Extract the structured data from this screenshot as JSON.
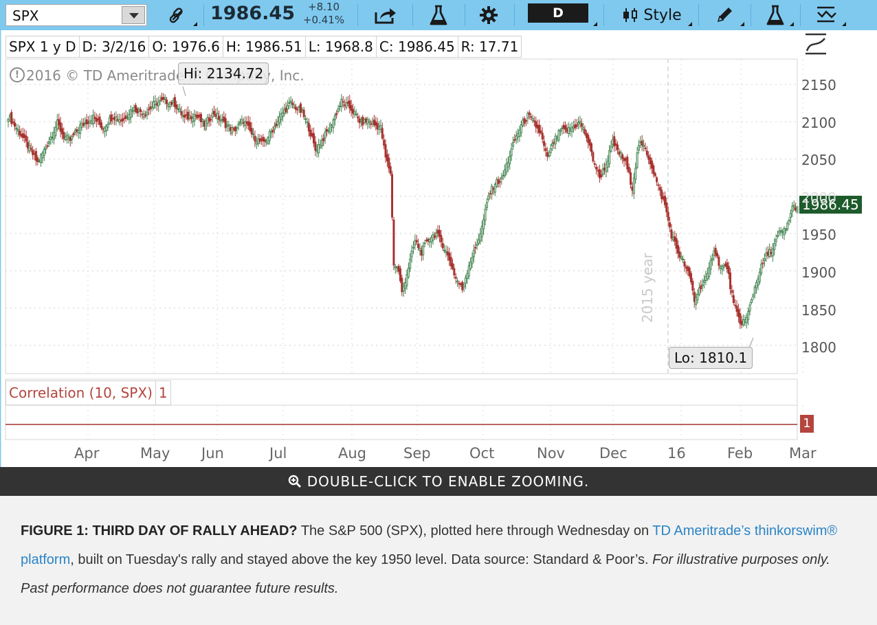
{
  "toolbar": {
    "symbol": "SPX",
    "last_price": "1986.45",
    "change_abs": "+8.10",
    "change_pct": "+0.41%",
    "aggregation": "D",
    "style_label": "Style",
    "icons": [
      "link-icon",
      "share-icon",
      "flask-icon",
      "gear-icon",
      "candlestick-icon",
      "pencil-icon",
      "flask-icon",
      "studies-icon"
    ]
  },
  "legend": {
    "symbol_period": "SPX 1 y D",
    "date": "D: 3/2/16",
    "open": "O: 1976.6",
    "high": "H: 1986.51",
    "low": "L: 1968.8",
    "close": "C: 1986.45",
    "range": "R: 17.71"
  },
  "copyright": "2016 © TD Ameritrade IP Company, Inc.",
  "hi_callout": "Hi: 2134.72",
  "lo_callout": "Lo: 1810.1",
  "year_label": "2015 year",
  "last_price_tag": "1986.45",
  "correlation": {
    "label": "Correlation (10, SPX)",
    "value": "1",
    "tag": "1"
  },
  "y_axis_ticks": [
    "2150",
    "2100",
    "2050",
    "2000",
    "1950",
    "1900",
    "1850",
    "1800"
  ],
  "x_axis_ticks": [
    "Apr",
    "May",
    "Jun",
    "Jul",
    "Aug",
    "Sep",
    "Oct",
    "Nov",
    "Dec",
    "16",
    "Feb",
    "Mar"
  ],
  "zoom_banner": "DOUBLE-CLICK TO ENABLE ZOOMING.",
  "caption": {
    "title": "FIGURE 1: THIRD DAY OF RALLY AHEAD?",
    "text1": " The S&P 500 (SPX), plotted here through Wednesday on ",
    "link": "TD Ameritrade’s thinkorswim® platform",
    "text2": ", built on Tuesday's rally and stayed above the key 1950 level. Data source: Standard & Poor’s. ",
    "disclaimer": "For illustrative purposes only. Past performance does not guarantee future results."
  },
  "chart_data": {
    "type": "candlestick",
    "symbol": "SPX",
    "aggregation": "daily",
    "ylim": [
      1765,
      2175
    ],
    "x_range": [
      "2015-03-03",
      "2016-03-02"
    ],
    "path": [
      [
        0,
        2108
      ],
      [
        8,
        2082
      ],
      [
        14,
        2060
      ],
      [
        18,
        2045
      ],
      [
        24,
        2070
      ],
      [
        30,
        2098
      ],
      [
        34,
        2080
      ],
      [
        38,
        2075
      ],
      [
        44,
        2094
      ],
      [
        52,
        2106
      ],
      [
        58,
        2092
      ],
      [
        64,
        2108
      ],
      [
        70,
        2102
      ],
      [
        76,
        2118
      ],
      [
        84,
        2112
      ],
      [
        90,
        2125
      ],
      [
        96,
        2128
      ],
      [
        102,
        2124
      ],
      [
        108,
        2104
      ],
      [
        114,
        2110
      ],
      [
        120,
        2096
      ],
      [
        126,
        2112
      ],
      [
        132,
        2098
      ],
      [
        138,
        2088
      ],
      [
        144,
        2102
      ],
      [
        150,
        2080
      ],
      [
        156,
        2070
      ],
      [
        162,
        2090
      ],
      [
        168,
        2112
      ],
      [
        173,
        2125
      ],
      [
        180,
        2112
      ],
      [
        184,
        2092
      ],
      [
        188,
        2062
      ],
      [
        193,
        2078
      ],
      [
        198,
        2098
      ],
      [
        204,
        2127
      ],
      [
        210,
        2117
      ],
      [
        216,
        2098
      ],
      [
        220,
        2102
      ],
      [
        224,
        2096
      ],
      [
        228,
        2092
      ],
      [
        231,
        2052
      ],
      [
        234,
        2032
      ],
      [
        236,
        1910
      ],
      [
        239,
        1900
      ],
      [
        241,
        1870
      ],
      [
        245,
        1905
      ],
      [
        249,
        1940
      ],
      [
        253,
        1925
      ],
      [
        258,
        1945
      ],
      [
        262,
        1950
      ],
      [
        266,
        1935
      ],
      [
        270,
        1915
      ],
      [
        274,
        1890
      ],
      [
        278,
        1875
      ],
      [
        282,
        1908
      ],
      [
        286,
        1930
      ],
      [
        290,
        1958
      ],
      [
        294,
        2000
      ],
      [
        298,
        2018
      ],
      [
        302,
        2022
      ],
      [
        306,
        2048
      ],
      [
        310,
        2075
      ],
      [
        314,
        2095
      ],
      [
        318,
        2108
      ],
      [
        322,
        2098
      ],
      [
        326,
        2083
      ],
      [
        330,
        2050
      ],
      [
        334,
        2073
      ],
      [
        338,
        2088
      ],
      [
        342,
        2088
      ],
      [
        346,
        2093
      ],
      [
        350,
        2099
      ],
      [
        354,
        2080
      ],
      [
        358,
        2050
      ],
      [
        362,
        2025
      ],
      [
        366,
        2043
      ],
      [
        370,
        2072
      ],
      [
        374,
        2058
      ],
      [
        378,
        2045
      ],
      [
        382,
        2012
      ],
      [
        386,
        2070
      ],
      [
        390,
        2064
      ],
      [
        394,
        2040
      ],
      [
        398,
        2012
      ],
      [
        402,
        1988
      ],
      [
        406,
        1948
      ],
      [
        410,
        1925
      ],
      [
        414,
        1908
      ],
      [
        418,
        1885
      ],
      [
        420,
        1860
      ],
      [
        424,
        1880
      ],
      [
        428,
        1892
      ],
      [
        432,
        1930
      ],
      [
        436,
        1905
      ],
      [
        440,
        1905
      ],
      [
        444,
        1855
      ],
      [
        448,
        1830
      ],
      [
        452,
        1835
      ],
      [
        456,
        1870
      ],
      [
        460,
        1900
      ],
      [
        464,
        1920
      ],
      [
        468,
        1930
      ],
      [
        472,
        1950
      ],
      [
        476,
        1955
      ],
      [
        480,
        1985
      ],
      [
        483,
        1986
      ]
    ],
    "high": {
      "label": "Hi: 2134.72",
      "value": 2134.72
    },
    "low": {
      "label": "Lo: 1810.1",
      "value": 1810.1
    },
    "last": 1986.45,
    "correlation_value": 1
  }
}
